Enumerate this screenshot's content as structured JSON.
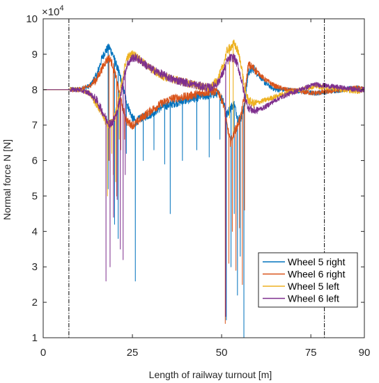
{
  "chart_data": {
    "type": "line",
    "title": "",
    "xlabel": "Length of railway turnout [m]",
    "ylabel": "Normal force N [N]",
    "y_exponent_label": "×10",
    "y_exponent_power": "4",
    "xlim": [
      0,
      90
    ],
    "ylim": [
      1,
      10
    ],
    "x_ticks": [
      0,
      25,
      50,
      75,
      90
    ],
    "y_ticks": [
      1,
      2,
      3,
      4,
      5,
      6,
      7,
      8,
      9,
      10
    ],
    "x_tick_labels": [
      "0",
      "25",
      "50",
      "75",
      "90"
    ],
    "y_tick_labels": [
      "1",
      "2",
      "3",
      "4",
      "5",
      "6",
      "7",
      "8",
      "9",
      "10"
    ],
    "grid": false,
    "legend_position": "bottom-right",
    "reference_lines_x": [
      7.2,
      78.8
    ],
    "series": [
      {
        "name": "Wheel 5 right",
        "color": "#0072BD",
        "x": [
          0,
          7,
          10,
          13,
          15,
          16.5,
          17.5,
          18.5,
          19.5,
          20.5,
          21.5,
          22.5,
          23.5,
          25,
          26,
          27.5,
          30,
          33,
          36,
          40,
          44,
          47,
          49,
          50.5,
          51.5,
          52.5,
          53.5,
          54.5,
          55.5,
          56.5,
          57.5,
          59,
          62,
          65,
          68,
          72,
          76,
          80,
          84,
          88,
          90
        ],
        "y": [
          8.0,
          8.0,
          8.0,
          8.1,
          8.4,
          8.9,
          9.1,
          9.2,
          9.0,
          8.7,
          8.4,
          8.0,
          7.6,
          7.2,
          7.1,
          7.2,
          7.3,
          7.5,
          7.6,
          7.7,
          7.8,
          7.85,
          7.9,
          7.7,
          7.3,
          7.5,
          7.6,
          7.2,
          7.2,
          7.6,
          8.5,
          8.6,
          8.2,
          8.0,
          8.0,
          7.95,
          7.9,
          7.95,
          8.0,
          8.05,
          8.0
        ],
        "dips": [
          [
            18.2,
            5.2
          ],
          [
            20.0,
            4.2
          ],
          [
            21.0,
            3.8
          ],
          [
            23.3,
            6.2
          ],
          [
            25.8,
            2.6
          ],
          [
            28.0,
            6.0
          ],
          [
            31.0,
            6.3
          ],
          [
            34.0,
            5.9
          ],
          [
            35.6,
            4.5
          ],
          [
            39.0,
            6.0
          ],
          [
            43.0,
            6.3
          ],
          [
            46.5,
            6.1
          ],
          [
            49.5,
            6.6
          ],
          [
            51.3,
            1.5
          ],
          [
            52.6,
            3.0
          ],
          [
            53.5,
            4.5
          ],
          [
            54.4,
            2.2
          ],
          [
            55.2,
            3.3
          ],
          [
            56.2,
            1.0
          ]
        ]
      },
      {
        "name": "Wheel 6 right",
        "color": "#D95319",
        "x": [
          0,
          7,
          10,
          13,
          15,
          16.5,
          17.5,
          18.5,
          19.5,
          20.5,
          21.5,
          22.5,
          23.5,
          25,
          26,
          27.5,
          30,
          33,
          36,
          40,
          44,
          47,
          49,
          50.5,
          51.5,
          52.5,
          53.5,
          54.5,
          55.5,
          56.5,
          57.5,
          59,
          62,
          65,
          68,
          72,
          76,
          80,
          84,
          88,
          90
        ],
        "y": [
          8.0,
          8.0,
          8.0,
          8.1,
          8.3,
          8.6,
          8.8,
          8.9,
          8.7,
          8.3,
          7.8,
          7.4,
          7.1,
          7.0,
          7.05,
          7.2,
          7.4,
          7.6,
          7.75,
          7.8,
          7.9,
          7.95,
          7.95,
          7.6,
          7.0,
          6.5,
          6.8,
          7.0,
          7.3,
          7.9,
          8.7,
          8.6,
          8.3,
          8.1,
          8.0,
          7.95,
          7.9,
          7.95,
          8.0,
          8.05,
          8.0
        ],
        "dips": [
          [
            18.4,
            6.0
          ],
          [
            19.6,
            5.6
          ],
          [
            20.6,
            5.0
          ],
          [
            21.7,
            6.3
          ],
          [
            22.8,
            6.6
          ],
          [
            51.0,
            1.4
          ],
          [
            52.0,
            3.1
          ],
          [
            53.0,
            4.0
          ],
          [
            54.0,
            2.9
          ],
          [
            55.0,
            4.1
          ],
          [
            55.8,
            2.5
          ],
          [
            56.4,
            4.6
          ]
        ]
      },
      {
        "name": "Wheel 5 left",
        "color": "#EDB120",
        "x": [
          0,
          7,
          10,
          13,
          15,
          16.5,
          17.5,
          18.5,
          19.5,
          20.5,
          21.5,
          22.5,
          23.5,
          25,
          26,
          27.5,
          30,
          33,
          36,
          40,
          44,
          47,
          49,
          50.5,
          51.5,
          52.5,
          53.5,
          54.5,
          55.5,
          56.5,
          57.5,
          59,
          62,
          65,
          68,
          72,
          76,
          80,
          84,
          88,
          90
        ],
        "y": [
          8.0,
          8.0,
          8.0,
          7.9,
          7.6,
          7.3,
          7.1,
          7.0,
          7.1,
          7.4,
          7.9,
          8.5,
          8.9,
          9.0,
          8.95,
          8.8,
          8.6,
          8.4,
          8.3,
          8.2,
          8.1,
          8.05,
          8.3,
          8.7,
          9.1,
          9.2,
          9.3,
          9.1,
          8.7,
          8.0,
          7.7,
          7.6,
          7.7,
          7.8,
          7.9,
          8.0,
          8.1,
          8.05,
          8.0,
          7.95,
          8.0
        ],
        "dips": [
          [
            18.0,
            5.0
          ],
          [
            19.2,
            6.2
          ],
          [
            20.3,
            5.4
          ],
          [
            21.3,
            6.6
          ],
          [
            52.2,
            7.2
          ],
          [
            53.2,
            6.8
          ]
        ]
      },
      {
        "name": "Wheel 6 left",
        "color": "#7E2F8E",
        "x": [
          0,
          7,
          10,
          13,
          15,
          16.5,
          17.5,
          18.5,
          19.5,
          20.5,
          21.5,
          22.5,
          23.5,
          25,
          26,
          27.5,
          30,
          33,
          36,
          40,
          44,
          47,
          49,
          50.5,
          51.5,
          52.5,
          53.5,
          54.5,
          55.5,
          56.5,
          57.5,
          59,
          62,
          65,
          68,
          72,
          76,
          80,
          84,
          88,
          90
        ],
        "y": [
          8.0,
          8.0,
          8.0,
          7.9,
          7.7,
          7.4,
          7.2,
          7.05,
          7.1,
          7.3,
          7.7,
          8.3,
          8.7,
          8.9,
          8.9,
          8.8,
          8.6,
          8.45,
          8.3,
          8.2,
          8.1,
          8.05,
          8.2,
          8.5,
          8.8,
          8.9,
          8.9,
          8.7,
          8.3,
          7.8,
          7.5,
          7.4,
          7.5,
          7.7,
          7.85,
          8.0,
          8.15,
          8.1,
          8.05,
          8.0,
          8.0
        ],
        "dips": [
          [
            17.6,
            2.6
          ],
          [
            18.7,
            3.0
          ],
          [
            19.7,
            4.4
          ],
          [
            20.7,
            4.9
          ],
          [
            21.6,
            3.5
          ],
          [
            22.4,
            3.2
          ],
          [
            23.0,
            5.6
          ],
          [
            51.1,
            1.6
          ]
        ]
      }
    ]
  }
}
